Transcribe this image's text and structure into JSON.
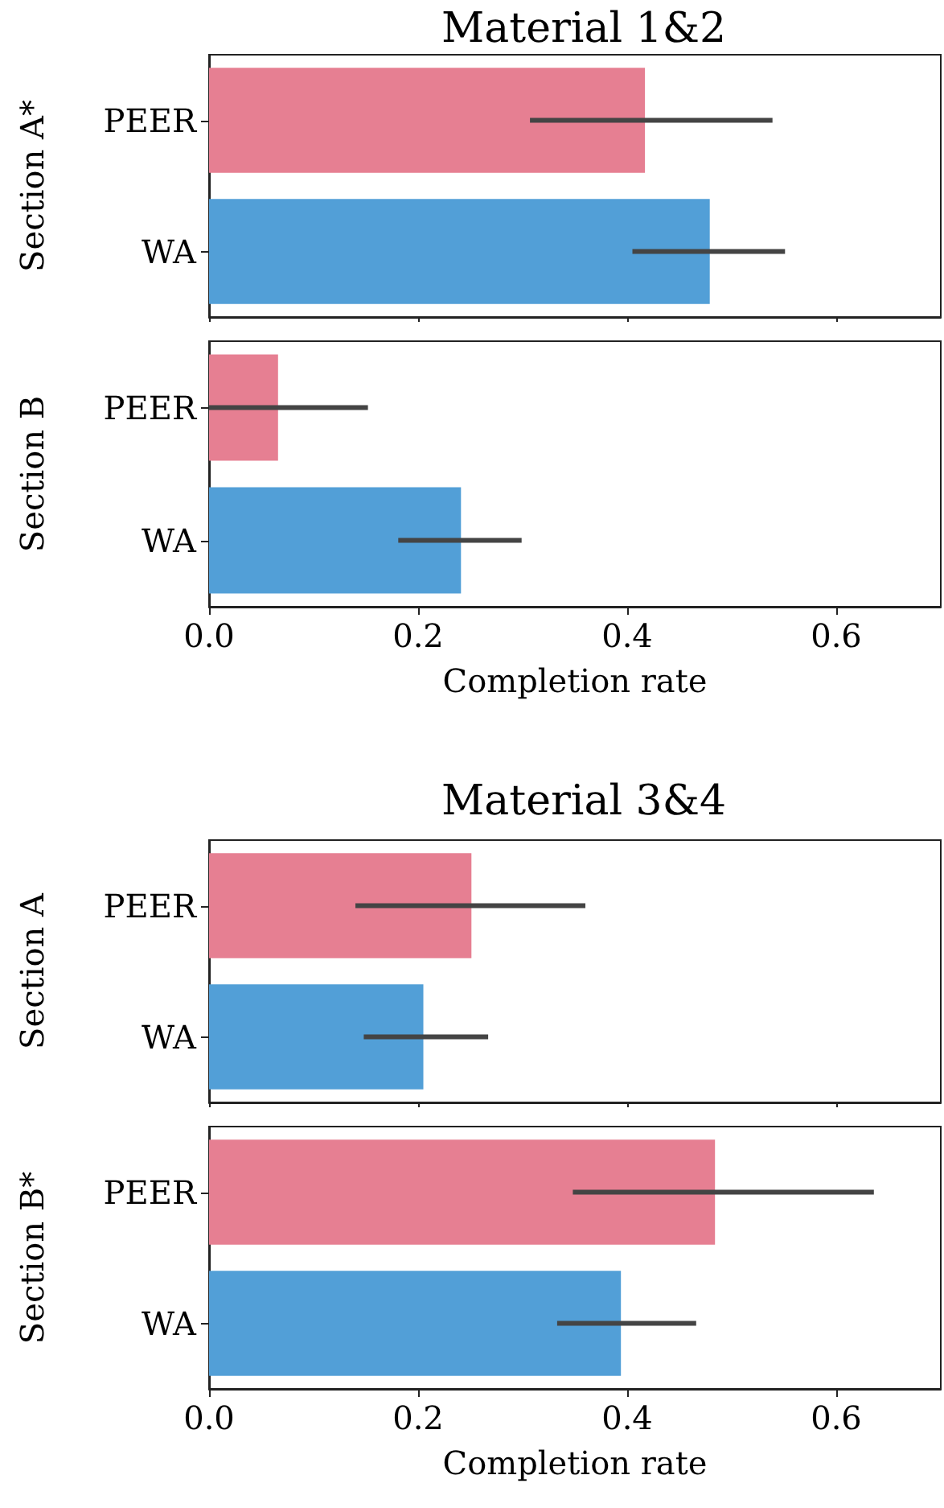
{
  "chart_data": [
    {
      "type": "bar",
      "orientation": "horizontal",
      "title": "Material 1&2",
      "ylabel": "Section A*",
      "categories": [
        "PEER",
        "WA"
      ],
      "values": [
        0.417,
        0.479
      ],
      "colors": [
        "#e67f92",
        "#529fd7"
      ],
      "errors": [
        [
          0.307,
          0.539
        ],
        [
          0.405,
          0.551
        ]
      ],
      "xlim": [
        0,
        0.7
      ],
      "xticks": [
        0.0,
        0.2,
        0.4,
        0.6
      ],
      "tick_labels": "y"
    },
    {
      "type": "bar",
      "orientation": "horizontal",
      "xlabel": "Completion rate",
      "ylabel": "Section B",
      "categories": [
        "PEER",
        "WA"
      ],
      "values": [
        0.066,
        0.241
      ],
      "colors": [
        "#e67f92",
        "#529fd7"
      ],
      "errors": [
        [
          0.0,
          0.152
        ],
        [
          0.181,
          0.299
        ]
      ],
      "xlim": [
        0,
        0.7
      ],
      "xticks": [
        {
          "value": 0,
          "label": "0.0"
        },
        0.2,
        0.4,
        0.6
      ]
    },
    {
      "type": "bar",
      "orientation": "horizontal",
      "title": "Material 3&4",
      "ylabel": "Section A",
      "categories": [
        "PEER",
        "WA"
      ],
      "values": [
        0.251,
        0.205
      ],
      "colors": [
        "#e67f92",
        "#529fd7"
      ],
      "errors": [
        [
          0.14,
          0.36
        ],
        [
          0.148,
          0.267
        ]
      ],
      "xlim": [
        0,
        0.7
      ],
      "xticks": [
        0.0,
        0.2,
        0.4,
        0.6
      ],
      "tick_labels": "y"
    },
    {
      "type": "bar",
      "orientation": "horizontal",
      "xlabel": "Completion rate",
      "ylabel": "Section B*",
      "categories": [
        "PEER",
        "WA"
      ],
      "values": [
        0.484,
        0.394
      ],
      "colors": [
        "#e67f92",
        "#529fd7"
      ],
      "errors": [
        [
          0.348,
          0.636
        ],
        [
          0.333,
          0.466
        ]
      ],
      "xlim": [
        0,
        0.7
      ],
      "xticks": [
        {
          "value": 0,
          "label": "0.0"
        },
        0.2,
        0.4,
        0.6
      ]
    }
  ]
}
